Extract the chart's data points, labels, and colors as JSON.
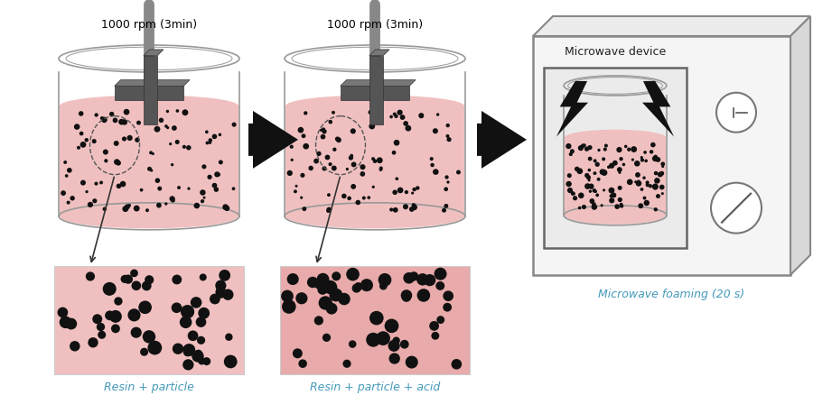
{
  "bg_color": "#ffffff",
  "pink_color": "#f0c0c0",
  "dark_gray": "#555555",
  "blade_color": "#555555",
  "rod_color": "#888888",
  "beaker_color": "#999999",
  "arrow_color": "#111111",
  "text_color": "#000000",
  "cyan_text": "#4499bb",
  "label1": "1000 rpm (3min)",
  "label2": "1000 rpm (3min)",
  "label3": "Microwave device",
  "label4": "Microwave foaming (20 s)",
  "label5": "Resin + particle",
  "label6": "Resin + particle + acid",
  "particle_color": "#111111",
  "microwave_face": "#f5f5f5",
  "microwave_top": "#ececec",
  "microwave_side": "#d8d8d8",
  "microwave_border": "#888888",
  "door_bg": "#ebebeb",
  "door_border": "#666666"
}
